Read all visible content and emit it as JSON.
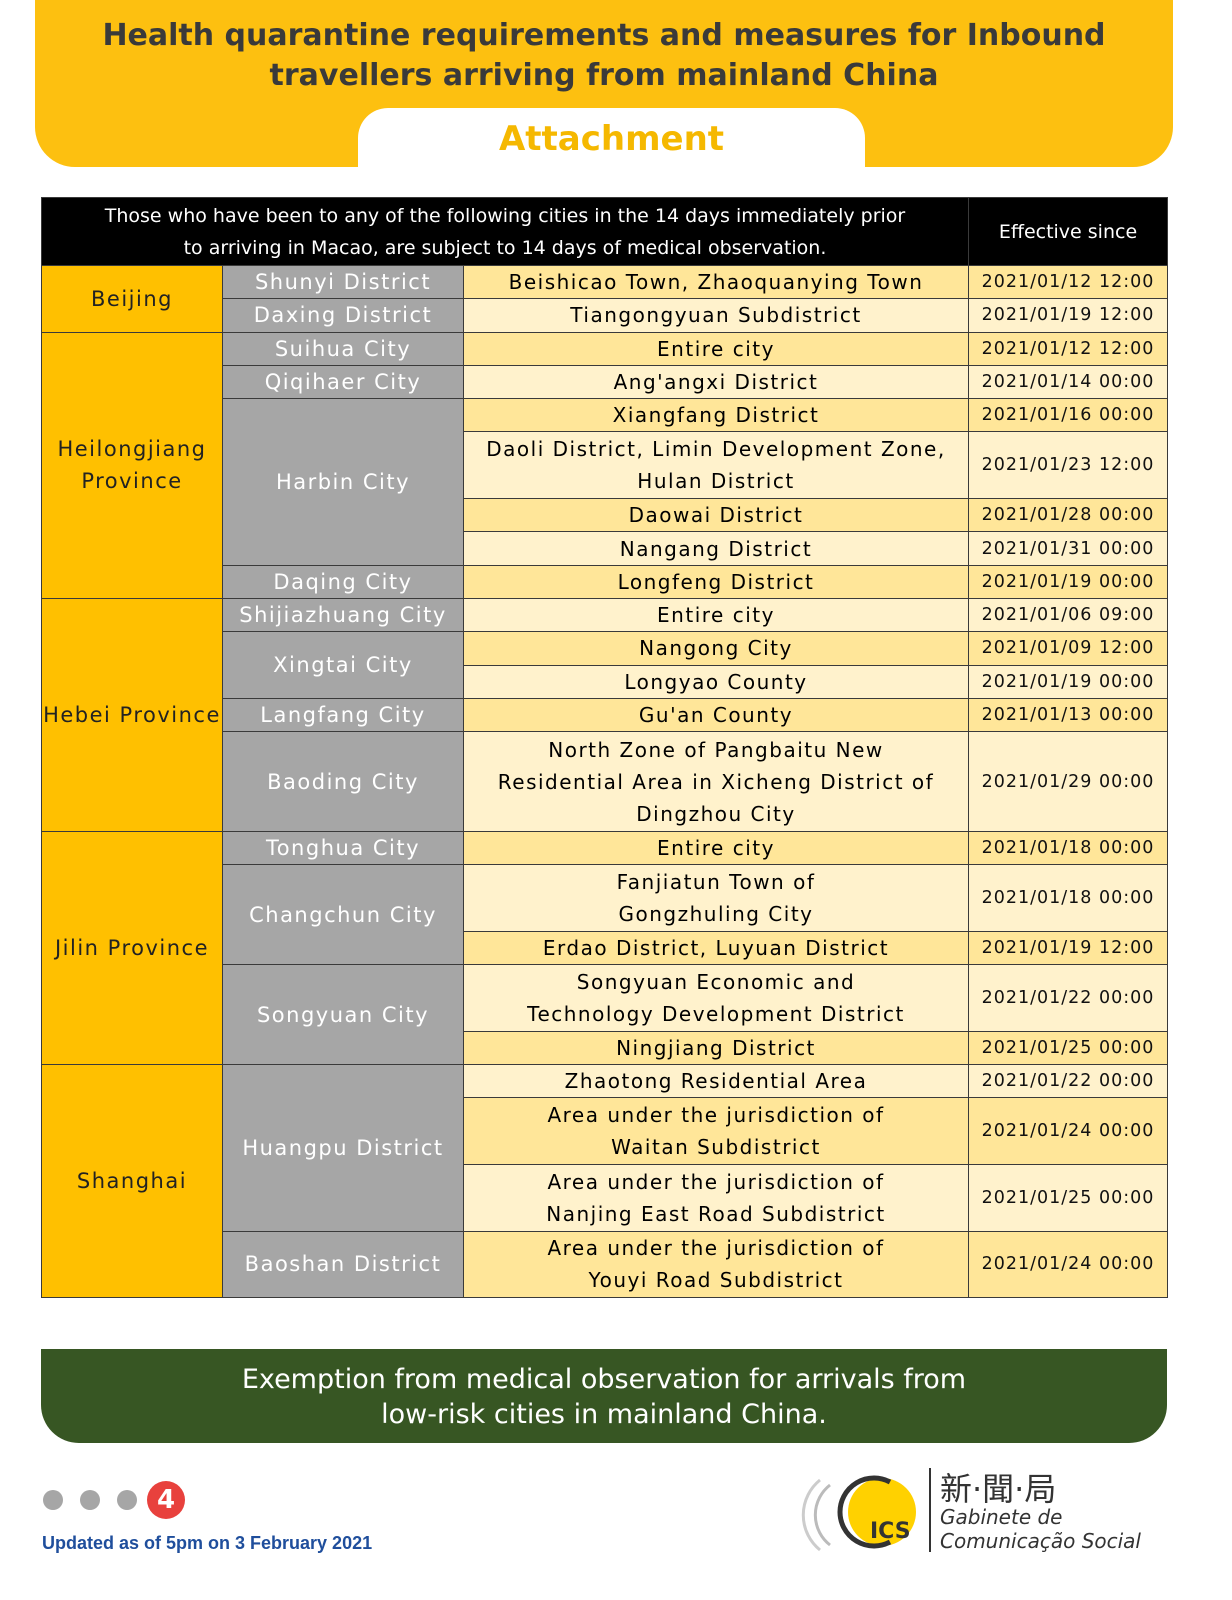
{
  "header": {
    "title_lines": [
      "Health quarantine requirements and measures for Inbound",
      "travellers arriving from mainland China"
    ],
    "tab": "Attachment"
  },
  "table": {
    "header": {
      "description_lines": [
        "Those who have been to any of the following cities in the 14 days immediately prior",
        "to arriving in Macao, are subject to 14 days of medical observation."
      ],
      "effective": "Effective since"
    },
    "groups": [
      {
        "province": "Beijing",
        "cities": [
          {
            "city": "Shunyi District",
            "areas": [
              {
                "area": [
                  "Beishicao Town, Zhaoquanying Town"
                ],
                "since": "2021/01/12 12:00"
              }
            ]
          },
          {
            "city": "Daxing District",
            "areas": [
              {
                "area": [
                  "Tiangongyuan Subdistrict"
                ],
                "since": "2021/01/19 12:00"
              }
            ]
          }
        ]
      },
      {
        "province": "Heilongjiang Province",
        "cities": [
          {
            "city": "Suihua City",
            "areas": [
              {
                "area": [
                  "Entire city"
                ],
                "since": "2021/01/12 12:00"
              }
            ]
          },
          {
            "city": "Qiqihaer City",
            "areas": [
              {
                "area": [
                  "Ang'angxi District"
                ],
                "since": "2021/01/14 00:00"
              }
            ]
          },
          {
            "city": "Harbin City",
            "areas": [
              {
                "area": [
                  "Xiangfang District"
                ],
                "since": "2021/01/16 00:00"
              },
              {
                "area": [
                  "Daoli District, Limin Development Zone,",
                  "Hulan District"
                ],
                "since": "2021/01/23 12:00"
              },
              {
                "area": [
                  "Daowai District"
                ],
                "since": "2021/01/28 00:00"
              },
              {
                "area": [
                  "Nangang District"
                ],
                "since": "2021/01/31 00:00"
              }
            ]
          },
          {
            "city": "Daqing City",
            "areas": [
              {
                "area": [
                  "Longfeng District"
                ],
                "since": "2021/01/19 00:00"
              }
            ]
          }
        ]
      },
      {
        "province": "Hebei Province",
        "cities": [
          {
            "city": "Shijiazhuang City",
            "areas": [
              {
                "area": [
                  "Entire city"
                ],
                "since": "2021/01/06 09:00"
              }
            ]
          },
          {
            "city": "Xingtai City",
            "areas": [
              {
                "area": [
                  "Nangong City"
                ],
                "since": "2021/01/09 12:00"
              },
              {
                "area": [
                  "Longyao County"
                ],
                "since": "2021/01/19 00:00"
              }
            ]
          },
          {
            "city": "Langfang City",
            "areas": [
              {
                "area": [
                  "Gu'an County"
                ],
                "since": "2021/01/13 00:00"
              }
            ]
          },
          {
            "city": "Baoding City",
            "areas": [
              {
                "area": [
                  "North Zone of Pangbaitu New",
                  "Residential Area in Xicheng District of",
                  "Dingzhou City"
                ],
                "since": "2021/01/29 00:00"
              }
            ]
          }
        ]
      },
      {
        "province": "Jilin Province",
        "cities": [
          {
            "city": "Tonghua City",
            "areas": [
              {
                "area": [
                  "Entire city"
                ],
                "since": "2021/01/18 00:00"
              }
            ]
          },
          {
            "city": "Changchun City",
            "areas": [
              {
                "area": [
                  "Fanjiatun Town of",
                  "Gongzhuling City"
                ],
                "since": "2021/01/18 00:00"
              },
              {
                "area": [
                  "Erdao District, Luyuan District"
                ],
                "since": "2021/01/19 12:00"
              }
            ]
          },
          {
            "city": "Songyuan City",
            "areas": [
              {
                "area": [
                  "Songyuan Economic and",
                  "Technology Development District"
                ],
                "since": "2021/01/22 00:00"
              },
              {
                "area": [
                  "Ningjiang District"
                ],
                "since": "2021/01/25 00:00"
              }
            ]
          }
        ]
      },
      {
        "province": "Shanghai",
        "cities": [
          {
            "city": "Huangpu District",
            "areas": [
              {
                "area": [
                  "Zhaotong Residential Area"
                ],
                "since": "2021/01/22 00:00"
              },
              {
                "area": [
                  "Area under the jurisdiction of",
                  "Waitan Subdistrict"
                ],
                "since": "2021/01/24 00:00"
              },
              {
                "area": [
                  "Area under the jurisdiction of",
                  "Nanjing East Road Subdistrict"
                ],
                "since": "2021/01/25 00:00"
              }
            ]
          },
          {
            "city": "Baoshan District",
            "areas": [
              {
                "area": [
                  "Area under the jurisdiction of",
                  "Youyi Road Subdistrict"
                ],
                "since": "2021/01/24 00:00"
              }
            ]
          }
        ]
      }
    ]
  },
  "banner": {
    "lines": [
      "Exemption from medical observation for arrivals from",
      "low-risk cities in mainland China."
    ]
  },
  "footer": {
    "page": "4",
    "updated": "Updated as of 5pm on 3 February 2021",
    "logo_initials": "ICS",
    "logo_chinese": "新·聞·局",
    "logo_lines": [
      "Gabinete de",
      "Comunicação Social"
    ]
  }
}
